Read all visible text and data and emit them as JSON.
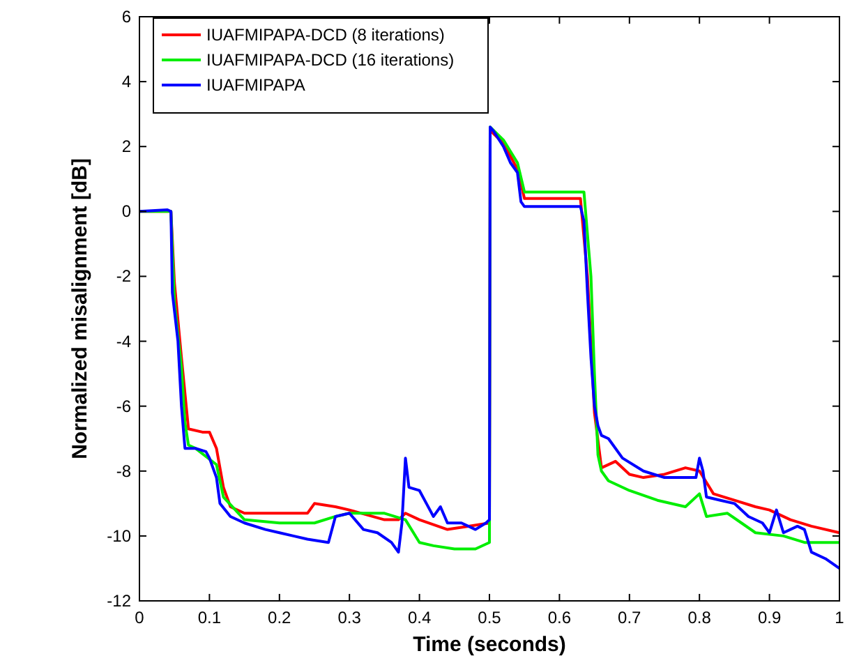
{
  "chart_data": {
    "type": "line",
    "xlabel": "Time (seconds)",
    "ylabel": "Normalized misalignment [dB]",
    "xlim": [
      0,
      1
    ],
    "ylim": [
      -12,
      6
    ],
    "xticks": [
      0,
      0.1,
      0.2,
      0.3,
      0.4,
      0.5,
      0.6,
      0.7,
      0.8,
      0.9,
      1
    ],
    "yticks": [
      -12,
      -10,
      -8,
      -6,
      -4,
      -2,
      0,
      2,
      4,
      6
    ],
    "grid": false,
    "legend": "top left",
    "line_style": "solid",
    "marker": "none",
    "series": [
      {
        "name": "IUAFMIPAPA-DCD (8 iterations)",
        "color": "#ff0000",
        "x": [
          0,
          0.045,
          0.05,
          0.06,
          0.07,
          0.09,
          0.1,
          0.11,
          0.12,
          0.13,
          0.15,
          0.2,
          0.24,
          0.25,
          0.28,
          0.3,
          0.35,
          0.37,
          0.38,
          0.4,
          0.44,
          0.47,
          0.5,
          0.501,
          0.52,
          0.54,
          0.55,
          0.63,
          0.64,
          0.65,
          0.66,
          0.68,
          0.7,
          0.72,
          0.75,
          0.78,
          0.8,
          0.82,
          0.85,
          0.88,
          0.9,
          0.93,
          0.96,
          1
        ],
        "values": [
          0,
          0,
          -2.2,
          -4.5,
          -6.7,
          -6.8,
          -6.8,
          -7.3,
          -8.5,
          -9.1,
          -9.3,
          -9.3,
          -9.3,
          -9.0,
          -9.1,
          -9.2,
          -9.5,
          -9.5,
          -9.3,
          -9.5,
          -9.8,
          -9.7,
          -9.6,
          2.5,
          2.1,
          1.3,
          0.4,
          0.4,
          -2,
          -6.2,
          -7.9,
          -7.7,
          -8.1,
          -8.2,
          -8.1,
          -7.9,
          -8.0,
          -8.7,
          -8.9,
          -9.1,
          -9.2,
          -9.5,
          -9.7,
          -9.9
        ]
      },
      {
        "name": "IUAFMIPAPA-DCD (16 iterations)",
        "color": "#00ee00",
        "x": [
          0,
          0.045,
          0.05,
          0.06,
          0.065,
          0.07,
          0.08,
          0.11,
          0.12,
          0.15,
          0.2,
          0.25,
          0.28,
          0.3,
          0.35,
          0.38,
          0.4,
          0.42,
          0.45,
          0.48,
          0.5,
          0.501,
          0.52,
          0.54,
          0.55,
          0.635,
          0.645,
          0.65,
          0.655,
          0.66,
          0.67,
          0.7,
          0.74,
          0.78,
          0.8,
          0.81,
          0.84,
          0.86,
          0.88,
          0.92,
          0.95,
          1
        ],
        "values": [
          0,
          0,
          -2.8,
          -4.8,
          -6.5,
          -7.2,
          -7.3,
          -7.8,
          -8.8,
          -9.5,
          -9.6,
          -9.6,
          -9.4,
          -9.3,
          -9.3,
          -9.5,
          -10.2,
          -10.3,
          -10.4,
          -10.4,
          -10.2,
          2.6,
          2.2,
          1.5,
          0.6,
          0.6,
          -2,
          -5,
          -7.5,
          -8.0,
          -8.3,
          -8.6,
          -8.9,
          -9.1,
          -8.7,
          -9.4,
          -9.3,
          -9.6,
          -9.9,
          -10.0,
          -10.2,
          -10.2
        ]
      },
      {
        "name": "IUAFMIPAPA",
        "color": "#0000ff",
        "x": [
          0,
          0.04,
          0.045,
          0.047,
          0.055,
          0.06,
          0.065,
          0.08,
          0.095,
          0.1,
          0.11,
          0.115,
          0.13,
          0.15,
          0.18,
          0.2,
          0.22,
          0.24,
          0.27,
          0.28,
          0.3,
          0.32,
          0.34,
          0.36,
          0.37,
          0.375,
          0.38,
          0.385,
          0.4,
          0.41,
          0.42,
          0.43,
          0.44,
          0.46,
          0.48,
          0.495,
          0.5,
          0.501,
          0.505,
          0.52,
          0.53,
          0.54,
          0.545,
          0.55,
          0.63,
          0.635,
          0.64,
          0.645,
          0.65,
          0.655,
          0.66,
          0.67,
          0.69,
          0.72,
          0.75,
          0.78,
          0.795,
          0.8,
          0.805,
          0.81,
          0.83,
          0.85,
          0.87,
          0.89,
          0.9,
          0.91,
          0.92,
          0.94,
          0.95,
          0.96,
          0.98,
          1
        ],
        "values": [
          0,
          0.05,
          0,
          -2.5,
          -4,
          -6,
          -7.3,
          -7.3,
          -7.4,
          -7.6,
          -8.2,
          -9.0,
          -9.4,
          -9.6,
          -9.8,
          -9.9,
          -10.0,
          -10.1,
          -10.2,
          -9.4,
          -9.3,
          -9.8,
          -9.9,
          -10.2,
          -10.5,
          -9.6,
          -7.6,
          -8.5,
          -8.6,
          -9.0,
          -9.4,
          -9.1,
          -9.6,
          -9.6,
          -9.8,
          -9.6,
          -9.5,
          2.6,
          2.5,
          2.0,
          1.5,
          1.2,
          0.3,
          0.15,
          0.15,
          -0.3,
          -2.5,
          -4.5,
          -6.0,
          -6.6,
          -6.9,
          -7.0,
          -7.6,
          -8.0,
          -8.2,
          -8.2,
          -8.2,
          -7.6,
          -8.0,
          -8.8,
          -8.9,
          -9.0,
          -9.4,
          -9.6,
          -9.9,
          -9.2,
          -9.9,
          -9.7,
          -9.8,
          -10.5,
          -10.7,
          -11.0
        ]
      }
    ]
  }
}
